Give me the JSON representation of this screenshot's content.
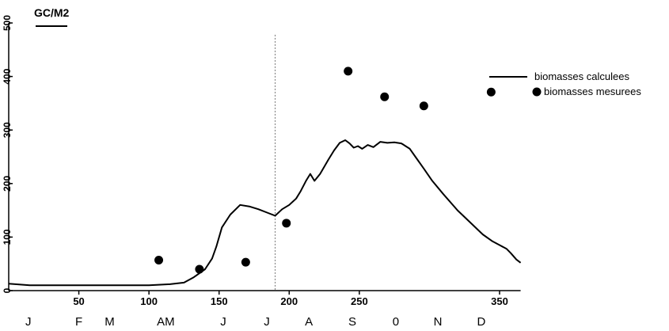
{
  "chart_data": {
    "type": "line",
    "unit_label": "GC/M2",
    "x_range": [
      0,
      365
    ],
    "y_range": [
      0,
      500
    ],
    "x_ticks": [
      {
        "value": 50,
        "label": "50"
      },
      {
        "value": 100,
        "label": "100"
      },
      {
        "value": 150,
        "label": "150"
      },
      {
        "value": 200,
        "label": "200"
      },
      {
        "value": 250,
        "label": "250"
      },
      {
        "value": 350,
        "label": "350"
      }
    ],
    "y_ticks": [
      {
        "value": 0,
        "label": "0"
      },
      {
        "value": 100,
        "label": "100"
      },
      {
        "value": 200,
        "label": "200"
      },
      {
        "value": 300,
        "label": "300"
      },
      {
        "value": 400,
        "label": "400"
      },
      {
        "value": 500,
        "label": "500"
      }
    ],
    "months": [
      {
        "label": "J",
        "day": 14
      },
      {
        "label": "F",
        "day": 50
      },
      {
        "label": "M",
        "day": 72
      },
      {
        "label": "AM",
        "day": 112
      },
      {
        "label": "J",
        "day": 153
      },
      {
        "label": "J",
        "day": 184
      },
      {
        "label": "A",
        "day": 214
      },
      {
        "label": "S",
        "day": 245
      },
      {
        "label": "0",
        "day": 276
      },
      {
        "label": "N",
        "day": 306
      },
      {
        "label": "D",
        "day": 337
      }
    ],
    "reference_line_x": 190,
    "legend": {
      "position": "top-right",
      "entries": [
        {
          "label": "biomasses calculees",
          "marker": "line"
        },
        {
          "label": "biomasses mesurees",
          "marker": "dot"
        }
      ]
    },
    "series": [
      {
        "name": "biomasses calculees",
        "kind": "line",
        "x": [
          0,
          15,
          30,
          50,
          70,
          100,
          115,
          125,
          132,
          140,
          145,
          148,
          152,
          158,
          165,
          172,
          178,
          185,
          190,
          195,
          200,
          205,
          208,
          212,
          215,
          218,
          222,
          228,
          232,
          236,
          240,
          243,
          246,
          249,
          252,
          256,
          260,
          265,
          270,
          275,
          280,
          283,
          286,
          290,
          296,
          302,
          310,
          320,
          330,
          338,
          345,
          350,
          355,
          358,
          362,
          365
        ],
        "y": [
          13,
          10,
          10,
          10,
          10,
          10,
          12,
          15,
          25,
          40,
          60,
          82,
          118,
          142,
          160,
          157,
          152,
          145,
          140,
          152,
          160,
          172,
          185,
          205,
          218,
          205,
          218,
          245,
          262,
          276,
          281,
          275,
          267,
          270,
          265,
          272,
          268,
          278,
          276,
          277,
          275,
          270,
          265,
          250,
          228,
          205,
          180,
          150,
          125,
          105,
          92,
          85,
          78,
          70,
          58,
          52
        ]
      },
      {
        "name": "biomasses mesurees",
        "kind": "scatter",
        "x": [
          107,
          136,
          169,
          198,
          242,
          268,
          296,
          344
        ],
        "y": [
          57,
          40,
          53,
          126,
          410,
          362,
          345,
          371
        ]
      }
    ]
  }
}
